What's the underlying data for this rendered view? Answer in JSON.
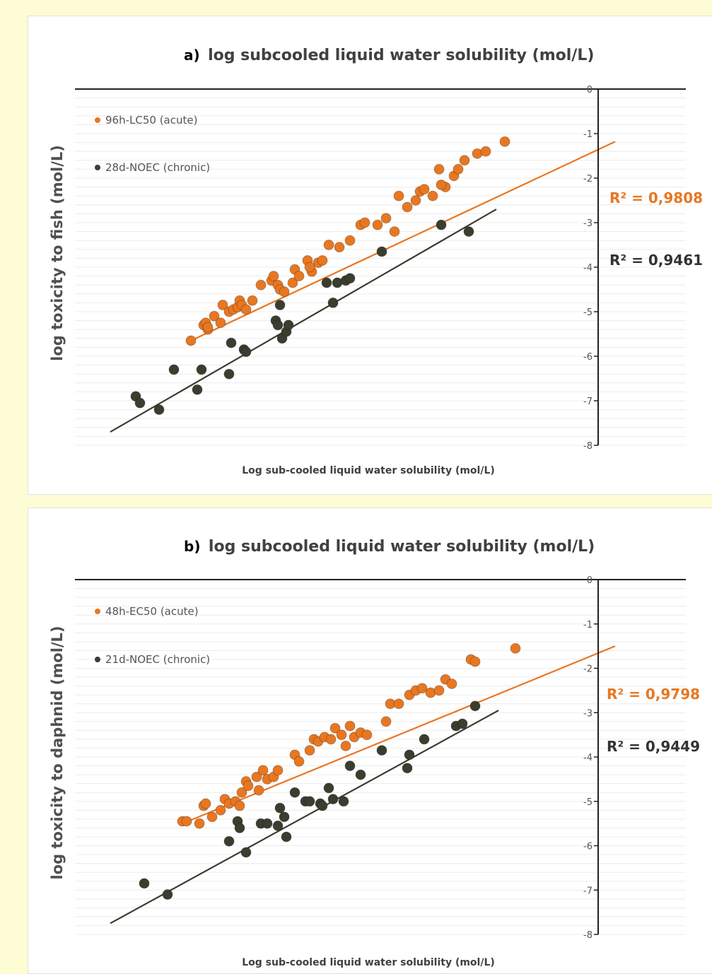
{
  "chart_data": [
    {
      "type": "scatter",
      "panel": "a",
      "title_prefix": "a)",
      "title": "log subcooled liquid water solubility (mol/L)",
      "xlabel": "Log sub-cooled liquid water solubility (mol/L)",
      "ylabel": "log  toxicity to fish (mol/L)",
      "ylim": [
        -8,
        0
      ],
      "yticks": [
        "0",
        "-1",
        "-2",
        "-3",
        "-4",
        "-5",
        "-6",
        "-7",
        "-8"
      ],
      "grid": true,
      "legend_position": "top-left",
      "series": [
        {
          "name": "96h-LC50 (acute)",
          "color": "#e87722",
          "r2": "R² = 0,9808",
          "trend": [
            [
              -9.6,
              -5.65
            ],
            [
              0.4,
              -1.18
            ]
          ],
          "points": [
            [
              -9.6,
              -5.65
            ],
            [
              -9.3,
              -5.3
            ],
            [
              -9.25,
              -5.25
            ],
            [
              -9.2,
              -5.4
            ],
            [
              -9.05,
              -5.1
            ],
            [
              -8.85,
              -4.85
            ],
            [
              -8.7,
              -5.0
            ],
            [
              -8.6,
              -4.95
            ],
            [
              -8.5,
              -4.9
            ],
            [
              -8.45,
              -4.75
            ],
            [
              -8.4,
              -4.85
            ],
            [
              -8.3,
              -4.95
            ],
            [
              -8.15,
              -4.75
            ],
            [
              -7.95,
              -4.4
            ],
            [
              -7.7,
              -4.3
            ],
            [
              -7.65,
              -4.2
            ],
            [
              -7.55,
              -4.4
            ],
            [
              -7.5,
              -4.5
            ],
            [
              -7.2,
              -4.35
            ],
            [
              -7.15,
              -4.05
            ],
            [
              -7.05,
              -4.2
            ],
            [
              -6.85,
              -3.85
            ],
            [
              -6.75,
              -4.1
            ],
            [
              -6.6,
              -3.9
            ],
            [
              -6.5,
              -3.85
            ],
            [
              -6.35,
              -3.5
            ],
            [
              -6.1,
              -3.55
            ],
            [
              -5.85,
              -3.4
            ],
            [
              -5.6,
              -3.05
            ],
            [
              -5.5,
              -3.0
            ],
            [
              -5.2,
              -3.05
            ],
            [
              -5.0,
              -2.9
            ],
            [
              -4.7,
              -2.4
            ],
            [
              -4.5,
              -2.65
            ],
            [
              -4.3,
              -2.5
            ],
            [
              -4.2,
              -2.3
            ],
            [
              -4.1,
              -2.25
            ],
            [
              -3.9,
              -2.4
            ],
            [
              -3.75,
              -1.8
            ],
            [
              -3.6,
              -2.2
            ],
            [
              -3.4,
              -1.95
            ],
            [
              -3.3,
              -1.8
            ],
            [
              -3.15,
              -1.6
            ],
            [
              -2.85,
              -1.45
            ],
            [
              -2.65,
              -1.4
            ],
            [
              -2.2,
              -1.18
            ],
            [
              -4.8,
              -3.2
            ],
            [
              -3.7,
              -2.15
            ],
            [
              -9.2,
              -5.35
            ],
            [
              -8.9,
              -5.25
            ],
            [
              -7.4,
              -4.55
            ],
            [
              -6.8,
              -4.0
            ]
          ]
        },
        {
          "name": "28d-NOEC (chronic)",
          "color": "#3b3d2e",
          "r2": "R² = 0,9461",
          "trend": [
            [
              -11.5,
              -7.7
            ],
            [
              -2.4,
              -2.7
            ]
          ],
          "points": [
            [
              -10.9,
              -6.9
            ],
            [
              -10.8,
              -7.05
            ],
            [
              -10.35,
              -7.2
            ],
            [
              -10.0,
              -6.3
            ],
            [
              -9.45,
              -6.75
            ],
            [
              -9.35,
              -6.3
            ],
            [
              -8.7,
              -6.4
            ],
            [
              -8.65,
              -5.7
            ],
            [
              -8.35,
              -5.85
            ],
            [
              -8.3,
              -5.9
            ],
            [
              -7.6,
              -5.2
            ],
            [
              -7.55,
              -5.3
            ],
            [
              -7.5,
              -4.85
            ],
            [
              -7.45,
              -5.6
            ],
            [
              -7.35,
              -5.45
            ],
            [
              -7.3,
              -5.3
            ],
            [
              -6.4,
              -4.35
            ],
            [
              -6.25,
              -4.8
            ],
            [
              -6.15,
              -4.35
            ],
            [
              -5.95,
              -4.3
            ],
            [
              -5.85,
              -4.25
            ],
            [
              -5.1,
              -3.65
            ],
            [
              -3.7,
              -3.05
            ],
            [
              -3.05,
              -3.2
            ]
          ]
        }
      ]
    },
    {
      "type": "scatter",
      "panel": "b",
      "title_prefix": "b)",
      "title": "log subcooled liquid water solubility (mol/L)",
      "xlabel": "Log sub-cooled liquid water solubility (mol/L)",
      "ylabel": "log  toxicity to daphnid (mol/L)",
      "ylim": [
        -8,
        0
      ],
      "yticks": [
        "0",
        "-1",
        "-2",
        "-3",
        "-4",
        "-5",
        "-6",
        "-7",
        "-8"
      ],
      "grid": true,
      "legend_position": "top-left",
      "series": [
        {
          "name": "48h-EC50 (acute)",
          "color": "#e87722",
          "r2": "R² = 0,9798",
          "trend": [
            [
              -9.8,
              -5.5
            ],
            [
              0.4,
              -1.5
            ]
          ],
          "points": [
            [
              -9.8,
              -5.45
            ],
            [
              -9.7,
              -5.45
            ],
            [
              -9.4,
              -5.5
            ],
            [
              -9.3,
              -5.1
            ],
            [
              -9.25,
              -5.05
            ],
            [
              -9.1,
              -5.35
            ],
            [
              -8.9,
              -5.2
            ],
            [
              -8.8,
              -4.95
            ],
            [
              -8.7,
              -5.05
            ],
            [
              -8.55,
              -5.0
            ],
            [
              -8.45,
              -5.1
            ],
            [
              -8.4,
              -4.8
            ],
            [
              -8.3,
              -4.55
            ],
            [
              -8.25,
              -4.65
            ],
            [
              -8.05,
              -4.45
            ],
            [
              -8.0,
              -4.75
            ],
            [
              -7.9,
              -4.3
            ],
            [
              -7.8,
              -4.5
            ],
            [
              -7.65,
              -4.45
            ],
            [
              -7.55,
              -4.3
            ],
            [
              -7.15,
              -3.95
            ],
            [
              -7.05,
              -4.1
            ],
            [
              -6.8,
              -3.85
            ],
            [
              -6.7,
              -3.6
            ],
            [
              -6.6,
              -3.65
            ],
            [
              -6.45,
              -3.55
            ],
            [
              -6.3,
              -3.6
            ],
            [
              -6.2,
              -3.35
            ],
            [
              -6.05,
              -3.5
            ],
            [
              -5.95,
              -3.75
            ],
            [
              -5.85,
              -3.3
            ],
            [
              -5.75,
              -3.55
            ],
            [
              -5.6,
              -3.45
            ],
            [
              -5.45,
              -3.5
            ],
            [
              -5.0,
              -3.2
            ],
            [
              -4.9,
              -2.8
            ],
            [
              -4.7,
              -2.8
            ],
            [
              -4.45,
              -2.6
            ],
            [
              -4.3,
              -2.5
            ],
            [
              -4.15,
              -2.45
            ],
            [
              -3.95,
              -2.55
            ],
            [
              -3.75,
              -2.5
            ],
            [
              -3.6,
              -2.25
            ],
            [
              -3.45,
              -2.35
            ],
            [
              -3.0,
              -1.8
            ],
            [
              -2.9,
              -1.85
            ],
            [
              -1.95,
              -1.55
            ]
          ]
        },
        {
          "name": "21d-NOEC (chronic)",
          "color": "#3b3d2e",
          "r2": "R² = 0,9449",
          "trend": [
            [
              -11.5,
              -7.75
            ],
            [
              -2.35,
              -2.95
            ]
          ],
          "points": [
            [
              -10.7,
              -6.85
            ],
            [
              -10.15,
              -7.1
            ],
            [
              -8.7,
              -5.9
            ],
            [
              -8.5,
              -5.45
            ],
            [
              -8.45,
              -5.6
            ],
            [
              -8.3,
              -6.15
            ],
            [
              -7.95,
              -5.5
            ],
            [
              -7.8,
              -5.5
            ],
            [
              -7.55,
              -5.55
            ],
            [
              -7.5,
              -5.15
            ],
            [
              -7.4,
              -5.35
            ],
            [
              -7.35,
              -5.8
            ],
            [
              -7.15,
              -4.8
            ],
            [
              -6.9,
              -5.0
            ],
            [
              -6.8,
              -5.0
            ],
            [
              -6.55,
              -5.05
            ],
            [
              -6.5,
              -5.1
            ],
            [
              -6.35,
              -4.7
            ],
            [
              -6.25,
              -4.95
            ],
            [
              -6.0,
              -5.0
            ],
            [
              -5.85,
              -4.2
            ],
            [
              -5.6,
              -4.4
            ],
            [
              -5.1,
              -3.85
            ],
            [
              -4.5,
              -4.25
            ],
            [
              -4.45,
              -3.95
            ],
            [
              -4.1,
              -3.6
            ],
            [
              -3.35,
              -3.3
            ],
            [
              -3.2,
              -3.25
            ],
            [
              -2.9,
              -2.85
            ]
          ]
        }
      ]
    }
  ]
}
